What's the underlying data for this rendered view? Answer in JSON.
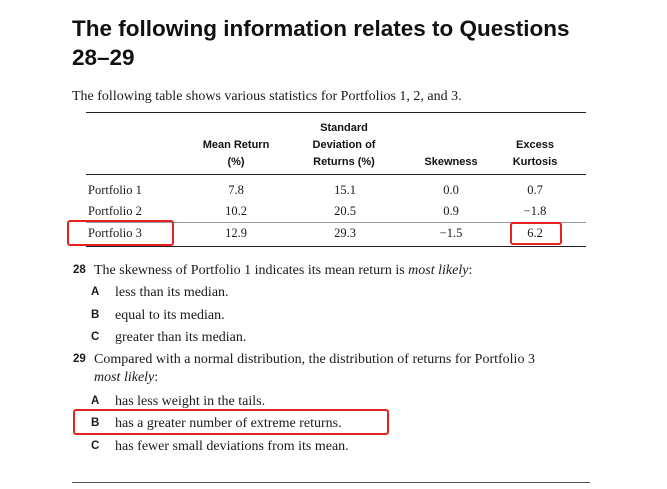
{
  "heading": "The following information relates to Questions 28–29",
  "intro": "The following table shows various statistics for Portfolios 1, 2, and 3.",
  "table": {
    "headers": [
      [
        "Mean Return",
        "(%)"
      ],
      [
        "Standard",
        "Deviation of",
        "Returns (%)"
      ],
      [
        "Skewness"
      ],
      [
        "Excess",
        "Kurtosis"
      ]
    ],
    "rows": [
      {
        "label": "Portfolio 1",
        "values": [
          "7.8",
          "15.1",
          "0.0",
          "0.7"
        ]
      },
      {
        "label": "Portfolio 2",
        "values": [
          "10.2",
          "20.5",
          "0.9",
          "−1.8"
        ]
      },
      {
        "label": "Portfolio 3",
        "values": [
          "12.9",
          "29.3",
          "−1.5",
          "6.2"
        ]
      }
    ]
  },
  "questions": [
    {
      "number": "28",
      "stem_plain": "The skewness of Portfolio 1 indicates its mean return is ",
      "stem_italic": "most likely",
      "stem_end": ":",
      "options": [
        {
          "letter": "A",
          "text": "less than its median."
        },
        {
          "letter": "B",
          "text": "equal to its median."
        },
        {
          "letter": "C",
          "text": "greater than its median."
        }
      ]
    },
    {
      "number": "29",
      "stem_line1": "Compared with a normal distribution, the distribution of returns for Portfolio 3",
      "stem_italic": "most likely",
      "stem_end": ":",
      "options": [
        {
          "letter": "A",
          "text": "has less weight in the tails."
        },
        {
          "letter": "B",
          "text": "has a greater number of extreme returns."
        },
        {
          "letter": "C",
          "text": "has fewer small deviations from its mean."
        }
      ]
    }
  ],
  "colors": {
    "highlight": "#e8231f"
  }
}
